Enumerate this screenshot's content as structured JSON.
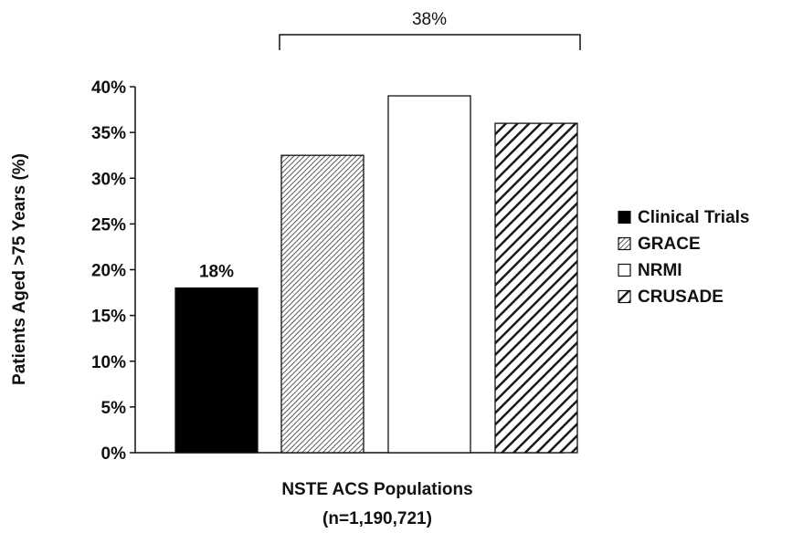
{
  "chart_data": {
    "type": "bar",
    "title": "",
    "xlabel_lines": [
      "NSTE ACS Populations",
      "(n=1,190,721)"
    ],
    "ylabel": "Patients Aged >75 Years (%)",
    "ylim": [
      0,
      40
    ],
    "yticks": [
      "0%",
      "5%",
      "10%",
      "15%",
      "20%",
      "25%",
      "30%",
      "35%",
      "40%"
    ],
    "series": [
      {
        "name": "Clinical Trials",
        "value": 18,
        "pattern": "solid-black"
      },
      {
        "name": "GRACE",
        "value": 32.5,
        "pattern": "fine-hatch"
      },
      {
        "name": "NRMI",
        "value": 39,
        "pattern": "white"
      },
      {
        "name": "CRUSADE",
        "value": 36,
        "pattern": "bold-hatch"
      }
    ],
    "annotations": {
      "clinical_trials_label": "18%",
      "registry_bracket_label": "38%"
    },
    "grid": false,
    "legend_position": "right"
  }
}
